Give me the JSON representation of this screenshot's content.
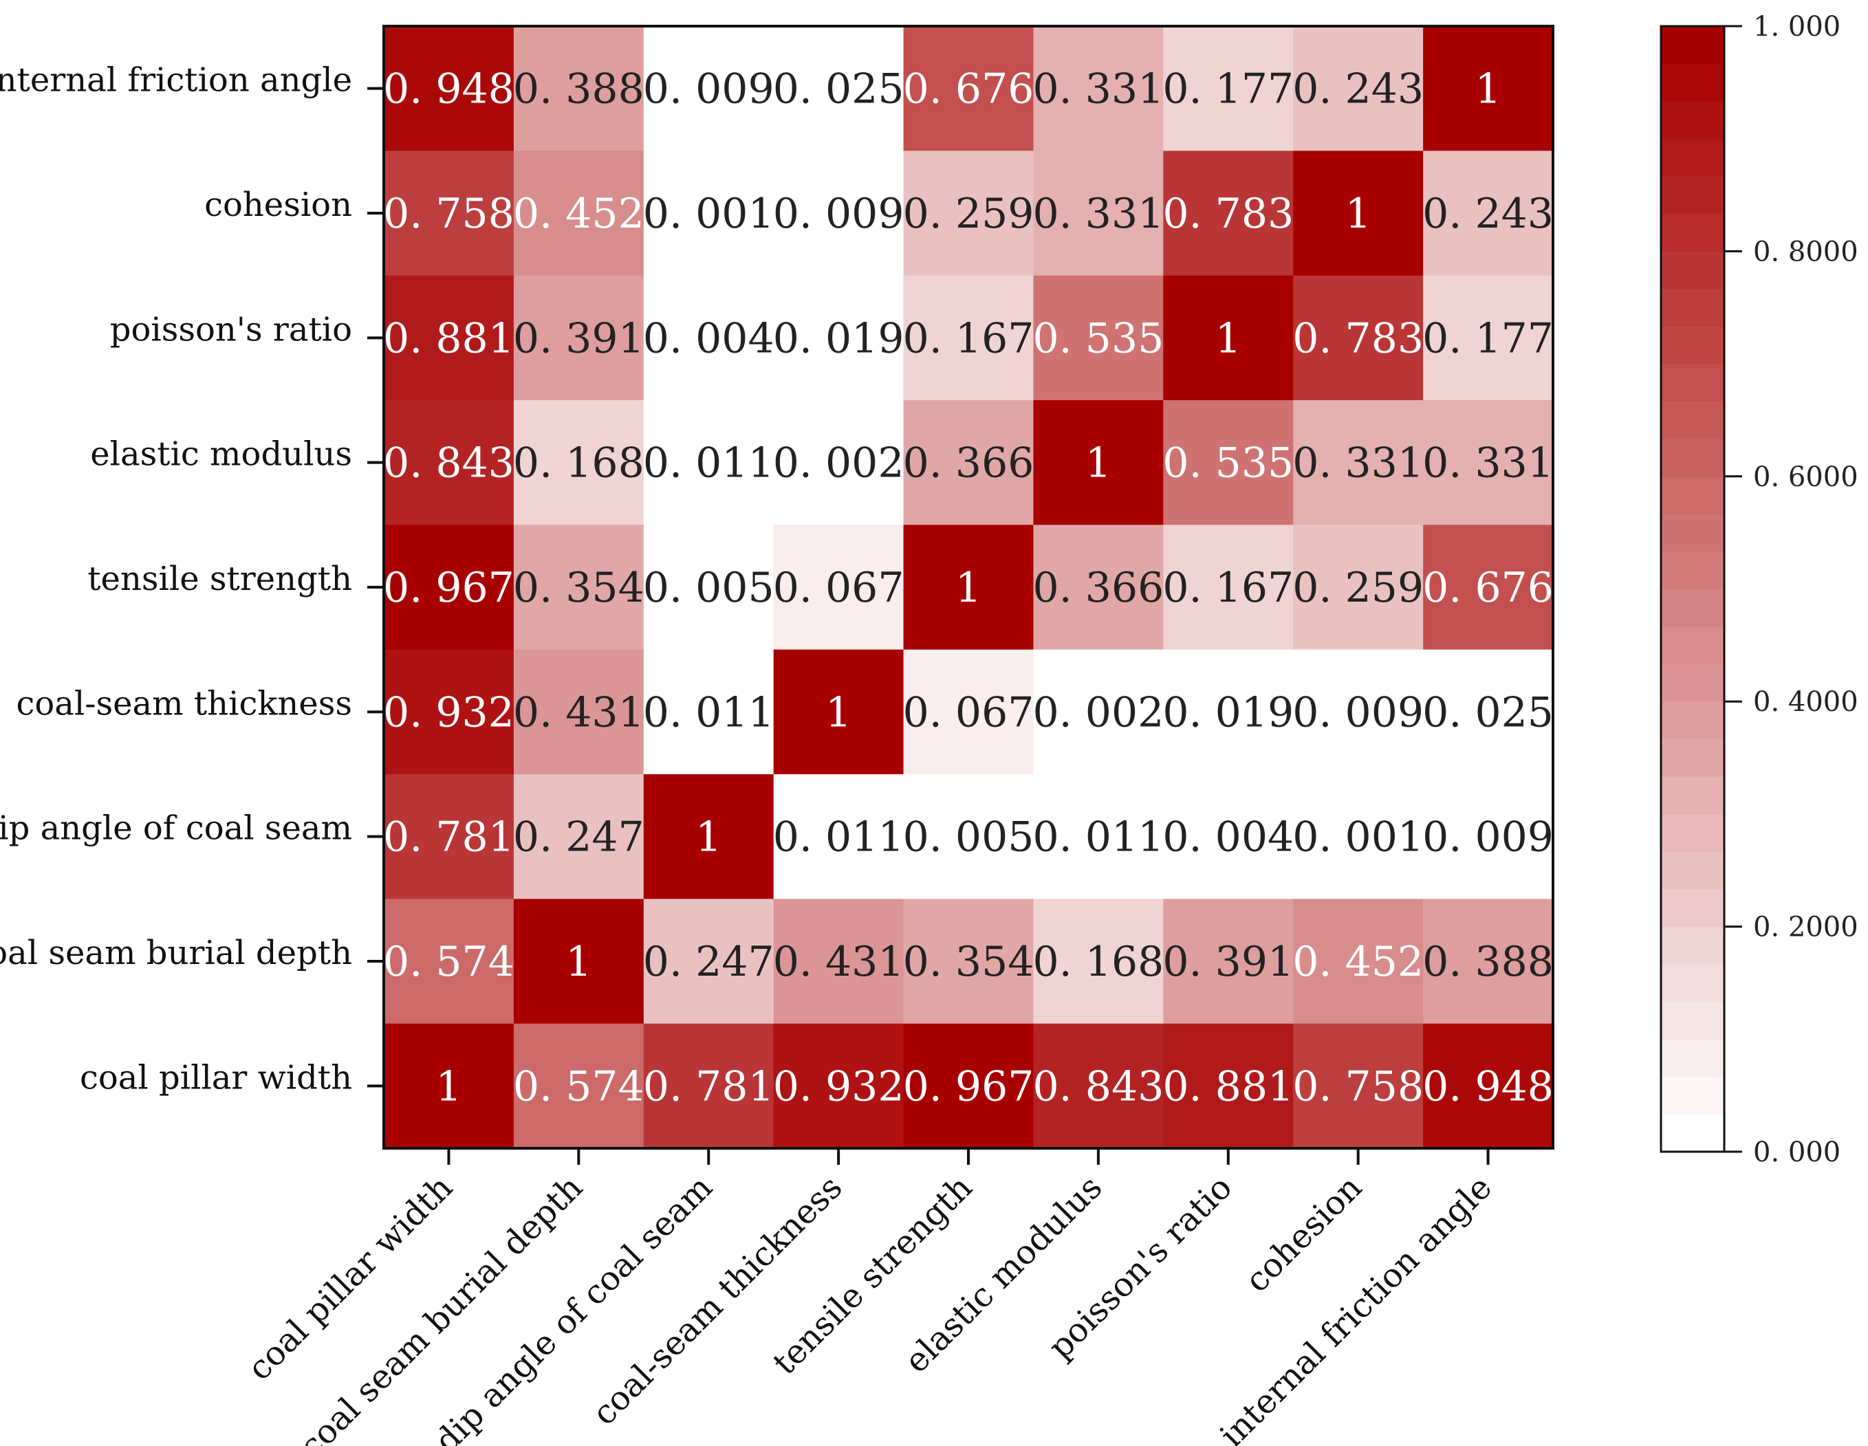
{
  "chart_data": {
    "type": "heatmap",
    "title": "",
    "row_labels": [
      "internal friction angle",
      "cohesion",
      "poisson's ratio",
      "elastic modulus",
      "tensile strength",
      "coal-seam thickness",
      "dip angle of coal seam",
      "coal seam burial depth",
      "coal pillar  width"
    ],
    "col_labels": [
      "coal pillar width",
      "coal seam burial depth",
      "dip angle of coal seam",
      "coal-seam thickness",
      "tensile strength",
      "elastic modulus",
      "poisson's ratio",
      "cohesion",
      "internal friction angle"
    ],
    "values": [
      [
        0.948,
        0.388,
        0.009,
        0.025,
        0.676,
        0.331,
        0.177,
        0.243,
        1
      ],
      [
        0.758,
        0.452,
        0.001,
        0.009,
        0.259,
        0.331,
        0.783,
        1,
        0.243
      ],
      [
        0.881,
        0.391,
        0.004,
        0.019,
        0.167,
        0.535,
        1,
        0.783,
        0.177
      ],
      [
        0.843,
        0.168,
        0.011,
        0.002,
        0.366,
        1,
        0.535,
        0.331,
        0.331
      ],
      [
        0.967,
        0.354,
        0.005,
        0.067,
        1,
        0.366,
        0.167,
        0.259,
        0.676
      ],
      [
        0.932,
        0.431,
        0.011,
        1,
        0.067,
        0.002,
        0.019,
        0.009,
        0.025
      ],
      [
        0.781,
        0.247,
        1,
        0.011,
        0.005,
        0.011,
        0.004,
        0.001,
        0.009
      ],
      [
        0.574,
        1,
        0.247,
        0.431,
        0.354,
        0.168,
        0.391,
        0.452,
        0.388
      ],
      [
        1,
        0.574,
        0.781,
        0.932,
        0.967,
        0.843,
        0.881,
        0.758,
        0.948
      ]
    ],
    "display_values": [
      [
        "0. 948",
        "0. 388",
        "0. 009",
        "0. 025",
        "0. 676",
        "0. 331",
        "0. 177",
        "0. 243",
        "1"
      ],
      [
        "0. 758",
        "0. 452",
        "0. 001",
        "0. 009",
        "0. 259",
        "0. 331",
        "0. 783",
        "1",
        "0. 243"
      ],
      [
        "0. 881",
        "0. 391",
        "0. 004",
        "0. 019",
        "0. 167",
        "0. 535",
        "1",
        "0. 783",
        "0. 177"
      ],
      [
        "0. 843",
        "0. 168",
        "0. 011",
        "0. 002",
        "0. 366",
        "1",
        "0. 535",
        "0. 331",
        "0. 331"
      ],
      [
        "0. 967",
        "0. 354",
        "0. 005",
        "0. 067",
        "1",
        "0. 366",
        "0. 167",
        "0. 259",
        "0. 676"
      ],
      [
        "0. 932",
        "0. 431",
        "0. 011",
        "1",
        "0. 067",
        "0. 002",
        "0. 019",
        "0. 009",
        "0. 025"
      ],
      [
        "0. 781",
        "0. 247",
        "1",
        "0. 011",
        "0. 005",
        "0. 011",
        "0. 004",
        "0. 001",
        "0. 009"
      ],
      [
        "0. 574",
        "1",
        "0. 247",
        "0. 431",
        "0. 354",
        "0. 168",
        "0. 391",
        "0. 452",
        "0. 388"
      ],
      [
        "1",
        "0. 574",
        "0. 781",
        "0. 932",
        "0. 967",
        "0. 843",
        "0. 881",
        "0. 758",
        "0. 948"
      ]
    ],
    "colorbar": {
      "range": [
        0,
        1
      ],
      "ticks": [
        {
          "value": 1.0,
          "label": "1. 000"
        },
        {
          "value": 0.8,
          "label": "0. 8000"
        },
        {
          "value": 0.6,
          "label": "0. 6000"
        },
        {
          "value": 0.4,
          "label": "0. 4000"
        },
        {
          "value": 0.2,
          "label": "0. 2000"
        },
        {
          "value": 0.0,
          "label": "0. 000"
        }
      ],
      "steps": 30,
      "low_color": "#ffffff",
      "high_color": "#a80000"
    },
    "text_color_dark": "#222222",
    "text_color_light": "#ffffff"
  }
}
